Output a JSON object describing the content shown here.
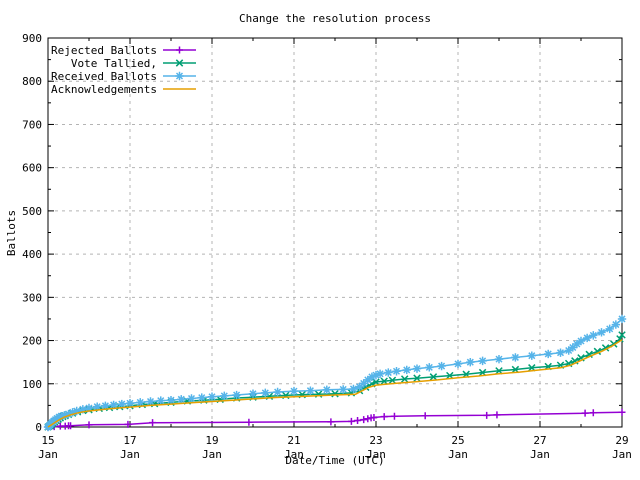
{
  "chart_data": {
    "type": "line",
    "title": "Change the resolution process",
    "xlabel": "Date/Time (UTC)",
    "ylabel": "Ballots",
    "xlim": [
      15,
      29
    ],
    "ylim": [
      0,
      900
    ],
    "grid": true,
    "legend_position": "top-left",
    "colors": {
      "border": "#000000",
      "grid": "#b4b4b4",
      "background": "#ffffff",
      "text": "#000000"
    },
    "x_ticks": [
      {
        "value": 15,
        "label": "15",
        "sub": "Jan"
      },
      {
        "value": 17,
        "label": "17",
        "sub": "Jan"
      },
      {
        "value": 19,
        "label": "19",
        "sub": "Jan"
      },
      {
        "value": 21,
        "label": "21",
        "sub": "Jan"
      },
      {
        "value": 23,
        "label": "23",
        "sub": "Jan"
      },
      {
        "value": 25,
        "label": "25",
        "sub": "Jan"
      },
      {
        "value": 27,
        "label": "27",
        "sub": "Jan"
      },
      {
        "value": 29,
        "label": "29",
        "sub": "Jan"
      }
    ],
    "x_minor_ticks": [
      16,
      18,
      20,
      22,
      24,
      26,
      28
    ],
    "y_ticks": [
      0,
      100,
      200,
      300,
      400,
      500,
      600,
      700,
      800,
      900
    ],
    "y_minor_ticks": [
      50,
      150,
      250,
      350,
      450,
      550,
      650,
      750,
      850
    ],
    "series": [
      {
        "name": "Rejected Ballots",
        "color": "#9400d3",
        "marker": "plus",
        "points": [
          [
            15.0,
            0
          ],
          [
            15.15,
            1
          ],
          [
            15.3,
            2
          ],
          [
            15.42,
            2
          ],
          [
            15.5,
            3
          ],
          [
            15.55,
            3
          ],
          [
            16.0,
            5
          ],
          [
            16.95,
            6
          ],
          [
            17.55,
            10
          ],
          [
            19.9,
            11
          ],
          [
            21.9,
            12
          ],
          [
            22.4,
            13
          ],
          [
            22.55,
            15
          ],
          [
            22.7,
            17
          ],
          [
            22.8,
            19
          ],
          [
            22.88,
            21
          ],
          [
            22.95,
            22
          ],
          [
            23.2,
            24
          ],
          [
            23.45,
            25
          ],
          [
            24.2,
            26
          ],
          [
            25.7,
            27
          ],
          [
            25.95,
            28
          ],
          [
            28.1,
            32
          ],
          [
            28.3,
            33
          ],
          [
            29.0,
            34
          ]
        ]
      },
      {
        "name": "Vote Tallied,",
        "color": "#009e73",
        "marker": "cross",
        "points": [
          [
            15.0,
            0
          ],
          [
            15.03,
            2
          ],
          [
            15.06,
            4
          ],
          [
            15.09,
            6
          ],
          [
            15.12,
            9
          ],
          [
            15.16,
            12
          ],
          [
            15.2,
            15
          ],
          [
            15.25,
            18
          ],
          [
            15.3,
            21
          ],
          [
            15.36,
            24
          ],
          [
            15.42,
            26
          ],
          [
            15.5,
            29
          ],
          [
            15.6,
            32
          ],
          [
            15.72,
            35
          ],
          [
            15.85,
            38
          ],
          [
            16.0,
            40
          ],
          [
            16.25,
            43
          ],
          [
            16.5,
            45
          ],
          [
            16.75,
            47
          ],
          [
            17.0,
            49
          ],
          [
            17.3,
            52
          ],
          [
            17.6,
            54
          ],
          [
            18.0,
            57
          ],
          [
            18.4,
            60
          ],
          [
            18.8,
            62
          ],
          [
            19.2,
            64
          ],
          [
            19.6,
            67
          ],
          [
            20.0,
            69
          ],
          [
            20.4,
            71
          ],
          [
            20.8,
            73
          ],
          [
            21.2,
            75
          ],
          [
            21.6,
            76
          ],
          [
            22.0,
            77
          ],
          [
            22.4,
            79
          ],
          [
            22.6,
            84
          ],
          [
            22.75,
            92
          ],
          [
            22.9,
            100
          ],
          [
            23.0,
            104
          ],
          [
            23.2,
            106
          ],
          [
            23.4,
            108
          ],
          [
            23.7,
            111
          ],
          [
            24.0,
            113
          ],
          [
            24.4,
            116
          ],
          [
            24.8,
            119
          ],
          [
            25.2,
            122
          ],
          [
            25.6,
            126
          ],
          [
            26.0,
            130
          ],
          [
            26.4,
            133
          ],
          [
            26.8,
            137
          ],
          [
            27.2,
            140
          ],
          [
            27.5,
            143
          ],
          [
            27.7,
            147
          ],
          [
            27.85,
            153
          ],
          [
            28.0,
            160
          ],
          [
            28.2,
            168
          ],
          [
            28.4,
            175
          ],
          [
            28.6,
            183
          ],
          [
            28.8,
            192
          ],
          [
            28.95,
            204
          ],
          [
            29.0,
            213
          ]
        ]
      },
      {
        "name": "Received Ballots",
        "color": "#56b4e9",
        "marker": "star",
        "points": [
          [
            15.0,
            0
          ],
          [
            15.02,
            2
          ],
          [
            15.05,
            5
          ],
          [
            15.08,
            8
          ],
          [
            15.11,
            11
          ],
          [
            15.14,
            14
          ],
          [
            15.18,
            17
          ],
          [
            15.22,
            20
          ],
          [
            15.27,
            23
          ],
          [
            15.32,
            25
          ],
          [
            15.4,
            27
          ],
          [
            15.5,
            30
          ],
          [
            15.6,
            34
          ],
          [
            15.7,
            37
          ],
          [
            15.85,
            41
          ],
          [
            16.0,
            44
          ],
          [
            16.2,
            47
          ],
          [
            16.4,
            49
          ],
          [
            16.6,
            51
          ],
          [
            16.8,
            53
          ],
          [
            17.0,
            55
          ],
          [
            17.25,
            57
          ],
          [
            17.5,
            59
          ],
          [
            17.75,
            61
          ],
          [
            18.0,
            62
          ],
          [
            18.25,
            64
          ],
          [
            18.5,
            66
          ],
          [
            18.75,
            68
          ],
          [
            19.0,
            70
          ],
          [
            19.3,
            72
          ],
          [
            19.6,
            74
          ],
          [
            20.0,
            77
          ],
          [
            20.3,
            79
          ],
          [
            20.6,
            81
          ],
          [
            21.0,
            83
          ],
          [
            21.4,
            84
          ],
          [
            21.8,
            86
          ],
          [
            22.2,
            87
          ],
          [
            22.45,
            88
          ],
          [
            22.6,
            93
          ],
          [
            22.7,
            101
          ],
          [
            22.8,
            109
          ],
          [
            22.9,
            116
          ],
          [
            23.0,
            120
          ],
          [
            23.1,
            123
          ],
          [
            23.3,
            126
          ],
          [
            23.5,
            129
          ],
          [
            23.75,
            132
          ],
          [
            24.0,
            135
          ],
          [
            24.3,
            138
          ],
          [
            24.6,
            141
          ],
          [
            25.0,
            146
          ],
          [
            25.3,
            150
          ],
          [
            25.6,
            153
          ],
          [
            26.0,
            157
          ],
          [
            26.4,
            161
          ],
          [
            26.8,
            165
          ],
          [
            27.2,
            169
          ],
          [
            27.5,
            172
          ],
          [
            27.7,
            177
          ],
          [
            27.8,
            184
          ],
          [
            27.9,
            192
          ],
          [
            28.0,
            199
          ],
          [
            28.15,
            206
          ],
          [
            28.3,
            212
          ],
          [
            28.5,
            219
          ],
          [
            28.7,
            227
          ],
          [
            28.85,
            237
          ],
          [
            29.0,
            250
          ]
        ]
      },
      {
        "name": "Acknowledgements",
        "color": "#e69f00",
        "marker": "none",
        "points": [
          [
            15.0,
            0
          ],
          [
            15.05,
            3
          ],
          [
            15.1,
            6
          ],
          [
            15.2,
            12
          ],
          [
            15.3,
            18
          ],
          [
            15.4,
            23
          ],
          [
            15.55,
            28
          ],
          [
            15.7,
            32
          ],
          [
            15.85,
            35
          ],
          [
            16.0,
            37
          ],
          [
            16.5,
            42
          ],
          [
            17.0,
            46
          ],
          [
            17.5,
            50
          ],
          [
            18.0,
            53
          ],
          [
            18.5,
            56
          ],
          [
            19.0,
            59
          ],
          [
            19.5,
            62
          ],
          [
            20.0,
            65
          ],
          [
            20.5,
            68
          ],
          [
            21.0,
            70
          ],
          [
            21.5,
            72
          ],
          [
            22.0,
            74
          ],
          [
            22.5,
            76
          ],
          [
            22.65,
            83
          ],
          [
            22.8,
            91
          ],
          [
            23.0,
            97
          ],
          [
            23.5,
            101
          ],
          [
            24.0,
            105
          ],
          [
            24.5,
            109
          ],
          [
            25.0,
            114
          ],
          [
            25.5,
            118
          ],
          [
            26.0,
            123
          ],
          [
            26.5,
            127
          ],
          [
            27.0,
            132
          ],
          [
            27.5,
            137
          ],
          [
            27.75,
            143
          ],
          [
            28.0,
            154
          ],
          [
            28.25,
            165
          ],
          [
            28.5,
            175
          ],
          [
            28.75,
            187
          ],
          [
            29.0,
            202
          ]
        ]
      }
    ]
  }
}
